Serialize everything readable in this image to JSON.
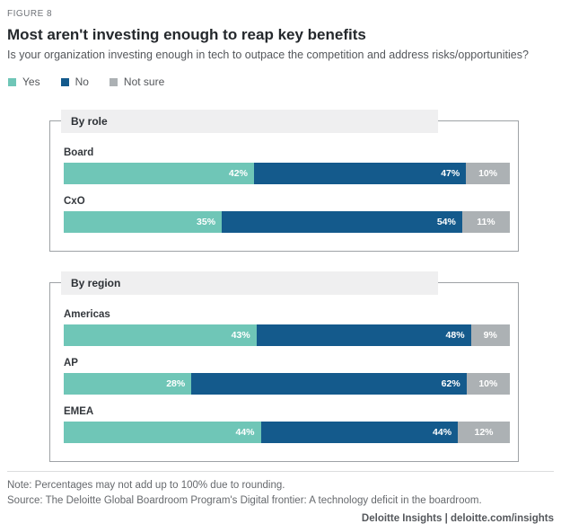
{
  "figure_label": "FIGURE 8",
  "title": "Most aren't investing enough to reap key benefits",
  "subtitle": "Is your organization investing enough in tech to outpace the competition and address risks/opportunities?",
  "legend": [
    {
      "label": "Yes",
      "color": "#6FC6B7"
    },
    {
      "label": "No",
      "color": "#145A8C"
    },
    {
      "label": "Not sure",
      "color": "#ACB1B4"
    }
  ],
  "chart_data": {
    "type": "bar",
    "orientation": "horizontal",
    "stacked": true,
    "value_suffix": "%",
    "series_names": [
      "Yes",
      "No",
      "Not sure"
    ],
    "colors": {
      "Yes": "#6FC6B7",
      "No": "#145A8C",
      "Not sure": "#ACB1B4"
    },
    "groups": [
      {
        "title": "By role",
        "categories": [
          "Board",
          "CxO"
        ],
        "rows": [
          {
            "label": "Board",
            "values": [
              42,
              47,
              10
            ]
          },
          {
            "label": "CxO",
            "values": [
              35,
              54,
              11
            ]
          }
        ]
      },
      {
        "title": "By region",
        "categories": [
          "Americas",
          "AP",
          "EMEA"
        ],
        "rows": [
          {
            "label": "Americas",
            "values": [
              43,
              48,
              9
            ]
          },
          {
            "label": "AP",
            "values": [
              28,
              62,
              10
            ]
          },
          {
            "label": "EMEA",
            "values": [
              44,
              44,
              12
            ]
          }
        ]
      }
    ]
  },
  "note": "Note: Percentages may not add up to 100% due to rounding.",
  "source": "Source: The Deloitte Global Boardroom Program's Digital frontier: A technology deficit in the boardroom.",
  "footer_brand": "Deloitte Insights | deloitte.com/insights"
}
